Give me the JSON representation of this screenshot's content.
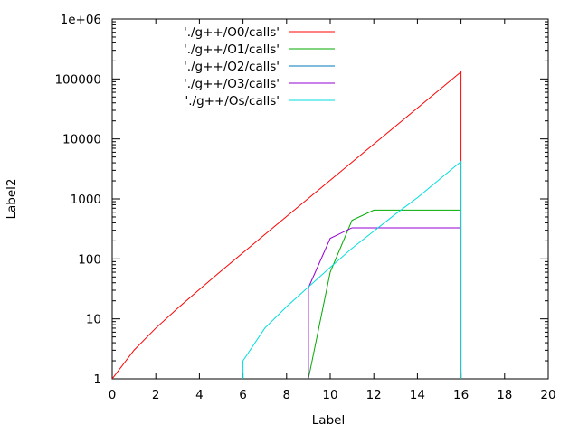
{
  "chart_data": {
    "type": "line",
    "xlabel": "Label",
    "ylabel": "Label2",
    "xlim": [
      0,
      20
    ],
    "ylim": [
      1,
      1000000
    ],
    "yscale": "log",
    "grid": false,
    "legend_position": "top-left",
    "x_ticks": [
      0,
      2,
      4,
      6,
      8,
      10,
      12,
      14,
      16,
      18,
      20
    ],
    "x_tick_labels": [
      "0",
      "2",
      "4",
      "6",
      "8",
      "10",
      "12",
      "14",
      "16",
      "18",
      "20"
    ],
    "y_ticks": [
      1,
      10,
      100,
      1000,
      10000,
      100000,
      1000000
    ],
    "y_tick_labels": [
      "1",
      "10",
      "100",
      "1000",
      "10000",
      "100000",
      "1e+06"
    ],
    "series": [
      {
        "name": "'./g++/O0/calls'",
        "color": "#ff0000",
        "points": [
          [
            0,
            1
          ],
          [
            1,
            3
          ],
          [
            2,
            7
          ],
          [
            3,
            15
          ],
          [
            4,
            31
          ],
          [
            5,
            63
          ],
          [
            6,
            127
          ],
          [
            7,
            255
          ],
          [
            8,
            511
          ],
          [
            9,
            1023
          ],
          [
            10,
            2047
          ],
          [
            11,
            4095
          ],
          [
            12,
            8191
          ],
          [
            13,
            16383
          ],
          [
            14,
            32767
          ],
          [
            15,
            65535
          ],
          [
            16,
            131071
          ],
          [
            16,
            1
          ]
        ]
      },
      {
        "name": "'./g++/O1/calls'",
        "color": "#00aa00",
        "points": [
          [
            9,
            1
          ],
          [
            10,
            60
          ],
          [
            11,
            440
          ],
          [
            12,
            650
          ],
          [
            13,
            650
          ],
          [
            14,
            650
          ],
          [
            15,
            650
          ],
          [
            16,
            650
          ]
        ]
      },
      {
        "name": "'./g++/O2/calls'",
        "color": "#0077bb",
        "points": []
      },
      {
        "name": "'./g++/O3/calls'",
        "color": "#9500d3",
        "points": [
          [
            9,
            1
          ],
          [
            9,
            33
          ],
          [
            10,
            220
          ],
          [
            11,
            330
          ],
          [
            12,
            330
          ],
          [
            13,
            330
          ],
          [
            14,
            330
          ],
          [
            15,
            330
          ],
          [
            16,
            330
          ]
        ]
      },
      {
        "name": "'./g++/Os/calls'",
        "color": "#00dddd",
        "points": [
          [
            6,
            1
          ],
          [
            6,
            2
          ],
          [
            7,
            7
          ],
          [
            8,
            16
          ],
          [
            9,
            34
          ],
          [
            10,
            72
          ],
          [
            11,
            150
          ],
          [
            12,
            290
          ],
          [
            13,
            560
          ],
          [
            14,
            1050
          ],
          [
            15,
            2100
          ],
          [
            16,
            4200
          ],
          [
            16,
            1
          ]
        ]
      }
    ]
  }
}
